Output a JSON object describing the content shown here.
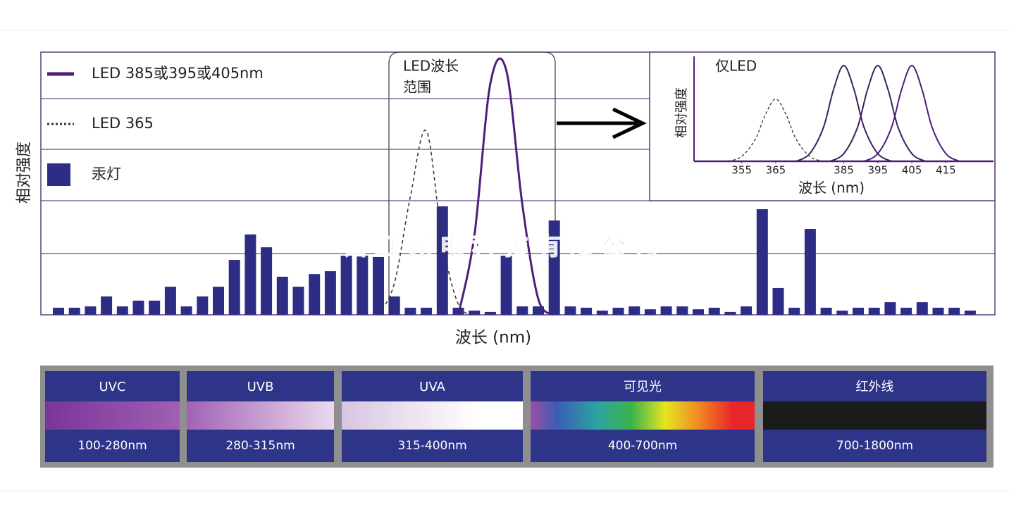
{
  "chart_data": [
    {
      "type": "bar",
      "xlabel": "波长 (nm)",
      "ylabel": "相对强度",
      "annotation": [
        "LED波长",
        "范围"
      ],
      "watermark": "镭虹光电科技有限公司",
      "categories": [
        null,
        null,
        null,
        null,
        null,
        null,
        null,
        null,
        null,
        null,
        null,
        null,
        null,
        null,
        null,
        null,
        null,
        null,
        null,
        null,
        null,
        null,
        null,
        null,
        null,
        null,
        null,
        null,
        null,
        null,
        null,
        null,
        null,
        null,
        null,
        null,
        null,
        null,
        null,
        null,
        null,
        null,
        null,
        null,
        null,
        null,
        null,
        null,
        null,
        null,
        null,
        null,
        null,
        null,
        null,
        null,
        null,
        null
      ],
      "ylim": [
        0,
        100
      ],
      "series": [
        {
          "name": "LED 385或395或405nm",
          "type": "line",
          "line_style": "solid",
          "color": "#4b1f7a",
          "values": [
            null,
            null,
            null,
            null,
            null,
            null,
            null,
            null,
            null,
            null,
            null,
            null,
            null,
            null,
            null,
            null,
            null,
            null,
            null,
            null,
            null,
            null,
            null,
            null,
            null,
            0,
            30,
            88,
            93,
            42,
            6,
            0,
            null,
            null,
            null,
            null,
            null,
            null,
            null,
            null,
            null,
            null,
            null,
            null,
            null,
            null,
            null,
            null,
            null,
            null,
            null,
            null,
            null,
            null,
            null,
            null,
            null,
            null
          ]
        },
        {
          "name": "LED 365",
          "type": "line",
          "line_style": "dashed",
          "color": "#333333",
          "values": [
            null,
            null,
            null,
            null,
            null,
            null,
            null,
            null,
            null,
            null,
            null,
            null,
            null,
            null,
            null,
            null,
            null,
            null,
            null,
            null,
            0,
            12,
            45,
            70,
            28,
            4,
            0,
            null,
            null,
            null,
            null,
            null,
            null,
            null,
            null,
            null,
            null,
            null,
            null,
            null,
            null,
            null,
            null,
            null,
            null,
            null,
            null,
            null,
            null,
            null,
            null,
            null,
            null,
            null,
            null,
            null,
            null,
            null
          ]
        },
        {
          "name": "汞灯",
          "type": "bar",
          "color": "#2e2d86",
          "values": [
            2.7,
            2.7,
            3.2,
            7,
            3.2,
            5.4,
            5.4,
            10.7,
            3.2,
            7,
            10.7,
            20.9,
            30.6,
            25.7,
            14.5,
            10.7,
            15.5,
            16.6,
            22.5,
            22.5,
            22,
            7,
            2.7,
            2.7,
            41.3,
            2.7,
            1.6,
            1.1,
            22.5,
            3.2,
            3.2,
            35.9,
            3.2,
            2.7,
            1.6,
            2.7,
            3.2,
            2.1,
            3.2,
            3.2,
            2.1,
            2.7,
            1.1,
            3.2,
            40.2,
            10.2,
            2.7,
            32.7,
            2.7,
            1.6,
            2.7,
            2.7,
            4.8,
            2.7,
            4.8,
            2.7,
            2.7,
            1.6
          ]
        }
      ]
    },
    {
      "type": "line",
      "title": "仅LED",
      "xlabel": "波长 (nm)",
      "ylabel": "相对强度",
      "xlim": [
        341,
        429
      ],
      "xticks": [
        355,
        365,
        385,
        395,
        405,
        415
      ],
      "ylim": [
        0,
        100
      ],
      "series": [
        {
          "line_style": "dashed",
          "color": "#333333",
          "x": [
            351,
            355,
            359,
            362,
            365,
            368,
            371,
            375,
            379
          ],
          "values": [
            0,
            5,
            23,
            49,
            65,
            49,
            23,
            5,
            0
          ]
        },
        {
          "line_style": "solid",
          "color": "#3d1f5e",
          "x": [
            371,
            375,
            379,
            382,
            385,
            388,
            391,
            395,
            399
          ],
          "values": [
            0,
            8,
            35,
            75,
            100,
            75,
            35,
            8,
            0
          ]
        },
        {
          "line_style": "solid",
          "color": "#3d1f5e",
          "x": [
            381,
            385,
            389,
            392,
            395,
            398,
            401,
            405,
            409
          ],
          "values": [
            0,
            8,
            35,
            75,
            100,
            75,
            35,
            8,
            0
          ]
        },
        {
          "line_style": "solid",
          "color": "#4b1f7a",
          "x": [
            391,
            395,
            399,
            402,
            405,
            408,
            411,
            415,
            419
          ],
          "values": [
            0,
            8,
            35,
            75,
            100,
            75,
            35,
            8,
            0
          ]
        }
      ]
    }
  ],
  "spectrum_bands": [
    {
      "label": "UVC",
      "range": "100-280nm"
    },
    {
      "label": "UVB",
      "range": "280-315nm"
    },
    {
      "label": "UVA",
      "range": "315-400nm"
    },
    {
      "label": "可见光",
      "range": "400-700nm"
    },
    {
      "label": "红外线",
      "range": "700-1800nm"
    }
  ]
}
